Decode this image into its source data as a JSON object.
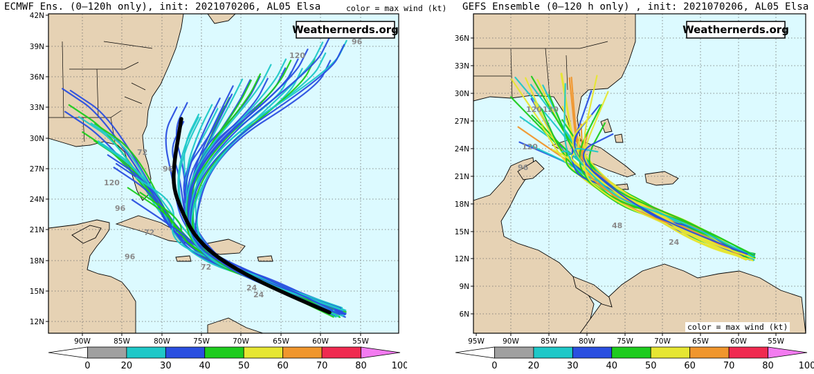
{
  "left": {
    "title": "ECMWF Ens. (0–120h only), init: 2021070206, AL05 Elsa",
    "note": "color = max wind (kt)",
    "watermark": "Weathernerds.org",
    "lat_labels": [
      "42N",
      "39N",
      "36N",
      "33N",
      "30N",
      "27N",
      "24N",
      "21N",
      "18N",
      "15N",
      "12N"
    ],
    "lon_labels": [
      "90W",
      "85W",
      "80W",
      "75W",
      "70W",
      "65W",
      "60W",
      "55W"
    ],
    "hour_labels": [
      "24",
      "24",
      "72",
      "96",
      "120",
      "96",
      "72",
      "96",
      "72",
      "96",
      "120"
    ]
  },
  "right": {
    "title": "GEFS Ensemble (0–120 h only) , init: 2021070206, AL05 Elsa",
    "note": "color = max wind (kt)",
    "watermark": "Weathernerds.org",
    "lat_labels": [
      "36N",
      "33N",
      "30N",
      "27N",
      "24N",
      "21N",
      "18N",
      "15N",
      "12N",
      "9N",
      "6N"
    ],
    "lon_labels": [
      "95W",
      "90W",
      "85W",
      "80W",
      "75W",
      "70W",
      "65W",
      "60W",
      "55W"
    ],
    "hour_labels": [
      "24",
      "48",
      "120",
      "120",
      "120",
      "96"
    ]
  },
  "colorbar": {
    "ticks": [
      "0",
      "20",
      "30",
      "40",
      "50",
      "60",
      "70",
      "80",
      "100"
    ],
    "colors": [
      "#a0a0a0",
      "#1fc8c8",
      "#2a4fe0",
      "#1ecc1e",
      "#e6e632",
      "#f0962d",
      "#f02a50",
      "#f37bf0"
    ]
  },
  "colors": {
    "ocean": "#dcfaff",
    "land": "#e6d2b4",
    "grid": "#6a6a6a",
    "ensemble_mean": "#000000"
  }
}
